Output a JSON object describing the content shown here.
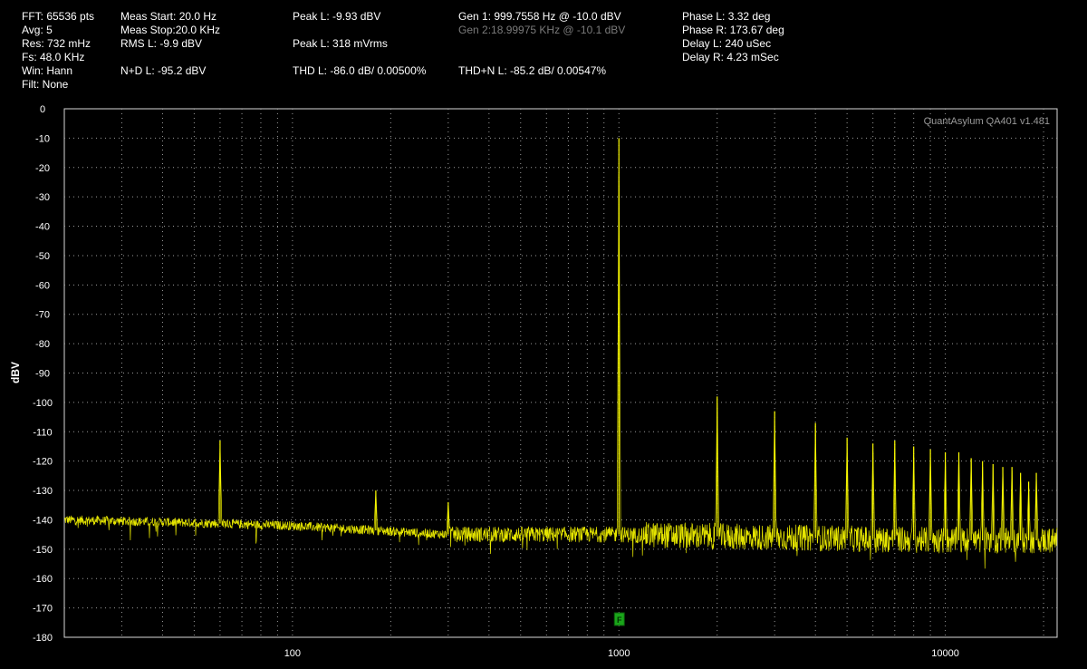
{
  "readouts": {
    "fft": "FFT: 65536 pts",
    "avg": "Avg: 5",
    "res": "Res: 732 mHz",
    "fs": "Fs: 48.0 KHz",
    "win": "Win: Hann",
    "filt": "Filt: None",
    "meas_start": "Meas Start: 20.0 Hz",
    "meas_stop": "Meas Stop:20.0 KHz",
    "rms_l": "RMS L: -9.9 dBV",
    "nd_l": "N+D L: -95.2 dBV",
    "peak_l_dbv": "Peak L: -9.93 dBV",
    "peak_l_mv": "Peak L: 318 mVrms",
    "thd_l": "THD L: -86.0 dB/ 0.00500%",
    "gen1": "Gen 1: 999.7558 Hz @ -10.0  dBV",
    "gen2": "Gen 2:18.99975 KHz @ -10.1  dBV",
    "thdn_l": "THD+N L: -85.2 dB/ 0.00547%",
    "phase_l": "Phase L: 3.32 deg",
    "phase_r": "Phase R: 173.67 deg",
    "delay_l": "Delay L: 240 uSec",
    "delay_r": "Delay R: 4.23 mSec"
  },
  "chart_data": {
    "type": "line",
    "title": "",
    "watermark": "QuantAsylum QA401 v1.481",
    "xlabel": "",
    "ylabel": "dBV",
    "x_scale": "log",
    "xlim": [
      20,
      22000
    ],
    "ylim": [
      -180,
      0
    ],
    "x_ticks": [
      100,
      1000,
      10000
    ],
    "x_tick_labels": [
      "100",
      "1000",
      "10000"
    ],
    "y_ticks": [
      0,
      -10,
      -20,
      -30,
      -40,
      -50,
      -60,
      -70,
      -80,
      -90,
      -100,
      -110,
      -120,
      -130,
      -140,
      -150,
      -160,
      -170,
      -180
    ],
    "grid": true,
    "trace_color": "#ffff00",
    "marker": {
      "label": "F",
      "x": 1000,
      "color": "#1aa51a"
    },
    "series": [
      {
        "peaks": [
          {
            "x": 60,
            "y": -113
          },
          {
            "x": 180,
            "y": -130
          },
          {
            "x": 300,
            "y": -134
          },
          {
            "x": 1000,
            "y": -10
          },
          {
            "x": 2000,
            "y": -98
          },
          {
            "x": 3000,
            "y": -103
          },
          {
            "x": 4000,
            "y": -107
          },
          {
            "x": 5000,
            "y": -112
          },
          {
            "x": 6000,
            "y": -114
          },
          {
            "x": 7000,
            "y": -113
          },
          {
            "x": 8000,
            "y": -115
          },
          {
            "x": 9000,
            "y": -116
          },
          {
            "x": 10000,
            "y": -117
          },
          {
            "x": 11000,
            "y": -117
          },
          {
            "x": 12000,
            "y": -119
          },
          {
            "x": 13000,
            "y": -120
          },
          {
            "x": 14000,
            "y": -121
          },
          {
            "x": 15000,
            "y": -122
          },
          {
            "x": 16000,
            "y": -122
          },
          {
            "x": 17000,
            "y": -124
          },
          {
            "x": 18000,
            "y": -127
          },
          {
            "x": 19000,
            "y": -124
          }
        ],
        "noise_floor": [
          {
            "x": 20,
            "y": -140
          },
          {
            "x": 50,
            "y": -141
          },
          {
            "x": 100,
            "y": -142
          },
          {
            "x": 300,
            "y": -145
          },
          {
            "x": 1000,
            "y": -145
          },
          {
            "x": 3000,
            "y": -146
          },
          {
            "x": 10000,
            "y": -147
          },
          {
            "x": 22000,
            "y": -147
          }
        ]
      }
    ]
  }
}
